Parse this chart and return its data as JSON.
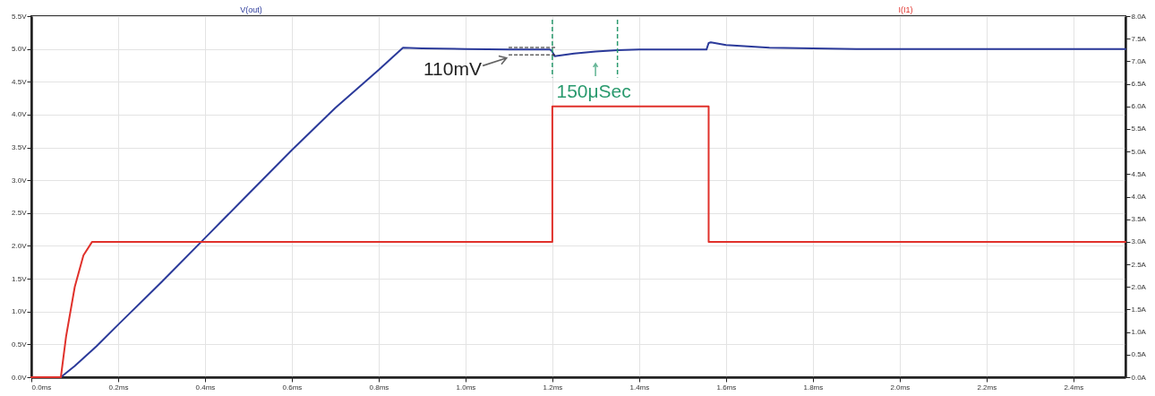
{
  "chart_data": {
    "type": "line",
    "xlim": [
      0,
      2.52
    ],
    "xticks": [
      {
        "value": 0,
        "label": "0.0ms"
      },
      {
        "value": 0.2,
        "label": "0.2ms"
      },
      {
        "value": 0.4,
        "label": "0.4ms"
      },
      {
        "value": 0.6,
        "label": "0.6ms"
      },
      {
        "value": 0.8,
        "label": "0.8ms"
      },
      {
        "value": 1.0,
        "label": "1.0ms"
      },
      {
        "value": 1.2,
        "label": "1.2ms"
      },
      {
        "value": 1.4,
        "label": "1.4ms"
      },
      {
        "value": 1.6,
        "label": "1.6ms"
      },
      {
        "value": 1.8,
        "label": "1.8ms"
      },
      {
        "value": 2.0,
        "label": "2.0ms"
      },
      {
        "value": 2.2,
        "label": "2.2ms"
      },
      {
        "value": 2.4,
        "label": "2.4ms"
      }
    ],
    "ylim": [
      0,
      5.5
    ],
    "yticks": [
      {
        "value": 0,
        "label": "0.0V"
      },
      {
        "value": 0.5,
        "label": "0.5V"
      },
      {
        "value": 1,
        "label": "1.0V"
      },
      {
        "value": 1.5,
        "label": "1.5V"
      },
      {
        "value": 2,
        "label": "2.0V"
      },
      {
        "value": 2.5,
        "label": "2.5V"
      },
      {
        "value": 3,
        "label": "3.0V"
      },
      {
        "value": 3.5,
        "label": "3.5V"
      },
      {
        "value": 4,
        "label": "4.0V"
      },
      {
        "value": 4.5,
        "label": "4.5V"
      },
      {
        "value": 5,
        "label": "5.0V"
      },
      {
        "value": 5.5,
        "label": "5.5V"
      }
    ],
    "y2lim": [
      0,
      8
    ],
    "y2ticks": [
      {
        "value": 0,
        "label": "0.0A"
      },
      {
        "value": 0.5,
        "label": "0.5A"
      },
      {
        "value": 1,
        "label": "1.0A"
      },
      {
        "value": 1.5,
        "label": "1.5A"
      },
      {
        "value": 2,
        "label": "2.0A"
      },
      {
        "value": 2.5,
        "label": "2.5A"
      },
      {
        "value": 3,
        "label": "3.0A"
      },
      {
        "value": 3.5,
        "label": "3.5A"
      },
      {
        "value": 4,
        "label": "4.0A"
      },
      {
        "value": 4.5,
        "label": "4.5A"
      },
      {
        "value": 5,
        "label": "5.0A"
      },
      {
        "value": 5.5,
        "label": "5.5A"
      },
      {
        "value": 6,
        "label": "6.0A"
      },
      {
        "value": 6.5,
        "label": "6.5A"
      },
      {
        "value": 7,
        "label": "7.0A"
      },
      {
        "value": 7.5,
        "label": "7.5A"
      },
      {
        "value": 8,
        "label": "8.0A"
      }
    ],
    "grid": true,
    "series": [
      {
        "name": "V(out)",
        "color": "#2b3a9a",
        "x": [
          0.068,
          0.1,
          0.15,
          0.2,
          0.3,
          0.4,
          0.5,
          0.6,
          0.7,
          0.8,
          0.856,
          0.9,
          1.0,
          1.1,
          1.195,
          1.2,
          1.205,
          1.25,
          1.3,
          1.35,
          1.4,
          1.5,
          1.555,
          1.56,
          1.565,
          1.6,
          1.7,
          1.8,
          1.9,
          2.0,
          2.2,
          2.4,
          2.52
        ],
        "values": [
          0,
          0.17,
          0.47,
          0.8,
          1.45,
          2.12,
          2.79,
          3.46,
          4.1,
          4.68,
          5.02,
          5.01,
          5.0,
          4.99,
          4.99,
          4.96,
          4.89,
          4.93,
          4.96,
          4.98,
          4.99,
          4.99,
          4.99,
          5.09,
          5.1,
          5.06,
          5.02,
          5.01,
          5.0,
          5.0,
          5.0,
          5.0,
          5.0
        ]
      },
      {
        "name": "I(I1)",
        "color": "#e0312b",
        "axis": "y2",
        "x": [
          0,
          0.068,
          0.08,
          0.1,
          0.12,
          0.14,
          1.2,
          1.2,
          1.56,
          1.56,
          2.52
        ],
        "values": [
          0,
          0,
          0.9,
          2.0,
          2.7,
          3.0,
          3.0,
          6.0,
          6.0,
          3.0,
          3.0
        ]
      }
    ],
    "ref_lines": [
      {
        "axis": "x",
        "value": 1.2,
        "color": "#2a9a6e",
        "line_style": "dashed"
      },
      {
        "axis": "x",
        "value": 1.35,
        "color": "#2a9a6e",
        "line_style": "dashed"
      }
    ],
    "annotations": [
      "110mV",
      "150μSec"
    ]
  }
}
